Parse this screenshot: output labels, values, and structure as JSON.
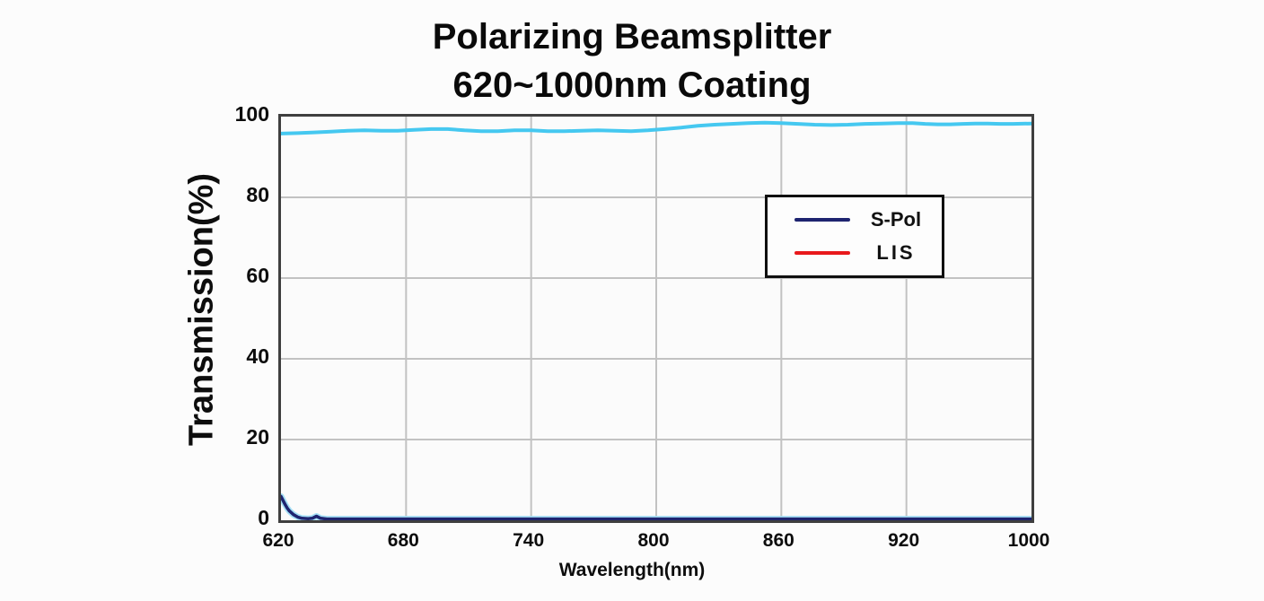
{
  "title": {
    "line1": "Polarizing Beamsplitter",
    "line2": "620~1000nm Coating"
  },
  "axes": {
    "y_label": "Transmission(%)",
    "x_label": "Wavelength(nm)"
  },
  "legend": {
    "items": [
      {
        "label": "S-Pol",
        "color": "#1e2470"
      },
      {
        "label": "LIS",
        "color": "#e8191c"
      }
    ]
  },
  "chart_data": {
    "type": "line",
    "title": "Polarizing Beamsplitter 620~1000nm Coating",
    "xlabel": "Wavelength(nm)",
    "ylabel": "Transmission(%)",
    "x_ticks": [
      620,
      680,
      740,
      800,
      860,
      920,
      1000
    ],
    "y_ticks": [
      0,
      20,
      40,
      60,
      80,
      100
    ],
    "ylim": [
      0,
      100
    ],
    "grid": true,
    "grid_color": "#c2c2c2",
    "frame_color": "#3f3f3f",
    "legend_position": "upper right",
    "x_axis_note": "ticks evenly spaced on axis; last interval 920-1000 spans 80nm",
    "series": [
      {
        "name": "high-transmission-curve",
        "color": "#45c8f0",
        "width": 4,
        "points": [
          [
            620,
            95.8
          ],
          [
            628,
            95.9
          ],
          [
            636,
            96.1
          ],
          [
            644,
            96.3
          ],
          [
            652,
            96.5
          ],
          [
            660,
            96.6
          ],
          [
            668,
            96.5
          ],
          [
            676,
            96.5
          ],
          [
            684,
            96.7
          ],
          [
            692,
            96.9
          ],
          [
            700,
            96.9
          ],
          [
            708,
            96.6
          ],
          [
            716,
            96.4
          ],
          [
            724,
            96.4
          ],
          [
            732,
            96.6
          ],
          [
            740,
            96.6
          ],
          [
            748,
            96.4
          ],
          [
            756,
            96.4
          ],
          [
            764,
            96.5
          ],
          [
            772,
            96.6
          ],
          [
            780,
            96.5
          ],
          [
            788,
            96.4
          ],
          [
            796,
            96.6
          ],
          [
            804,
            96.9
          ],
          [
            812,
            97.3
          ],
          [
            820,
            97.7
          ],
          [
            828,
            98.0
          ],
          [
            836,
            98.2
          ],
          [
            844,
            98.4
          ],
          [
            852,
            98.5
          ],
          [
            860,
            98.4
          ],
          [
            868,
            98.2
          ],
          [
            876,
            98.0
          ],
          [
            884,
            97.9
          ],
          [
            892,
            98.0
          ],
          [
            900,
            98.2
          ],
          [
            908,
            98.3
          ],
          [
            916,
            98.4
          ],
          [
            924,
            98.4
          ],
          [
            932,
            98.2
          ],
          [
            940,
            98.1
          ],
          [
            948,
            98.1
          ],
          [
            956,
            98.2
          ],
          [
            964,
            98.3
          ],
          [
            972,
            98.3
          ],
          [
            980,
            98.2
          ],
          [
            988,
            98.2
          ],
          [
            1000,
            98.3
          ]
        ]
      },
      {
        "name": "S-Pol",
        "color": "#1e2470",
        "width": 3.5,
        "glow_color": "#a5dff5",
        "glow_width": 7,
        "points": [
          [
            620,
            5.9
          ],
          [
            621,
            4.9
          ],
          [
            622,
            3.9
          ],
          [
            623,
            3.0
          ],
          [
            624,
            2.3
          ],
          [
            626,
            1.4
          ],
          [
            628,
            0.8
          ],
          [
            630,
            0.5
          ],
          [
            633,
            0.4
          ],
          [
            635,
            0.5
          ],
          [
            637,
            1.0
          ],
          [
            639,
            0.5
          ],
          [
            642,
            0.3
          ],
          [
            660,
            0.3
          ],
          [
            700,
            0.3
          ],
          [
            750,
            0.3
          ],
          [
            800,
            0.3
          ],
          [
            850,
            0.3
          ],
          [
            900,
            0.3
          ],
          [
            950,
            0.3
          ],
          [
            1000,
            0.3
          ]
        ]
      }
    ]
  }
}
